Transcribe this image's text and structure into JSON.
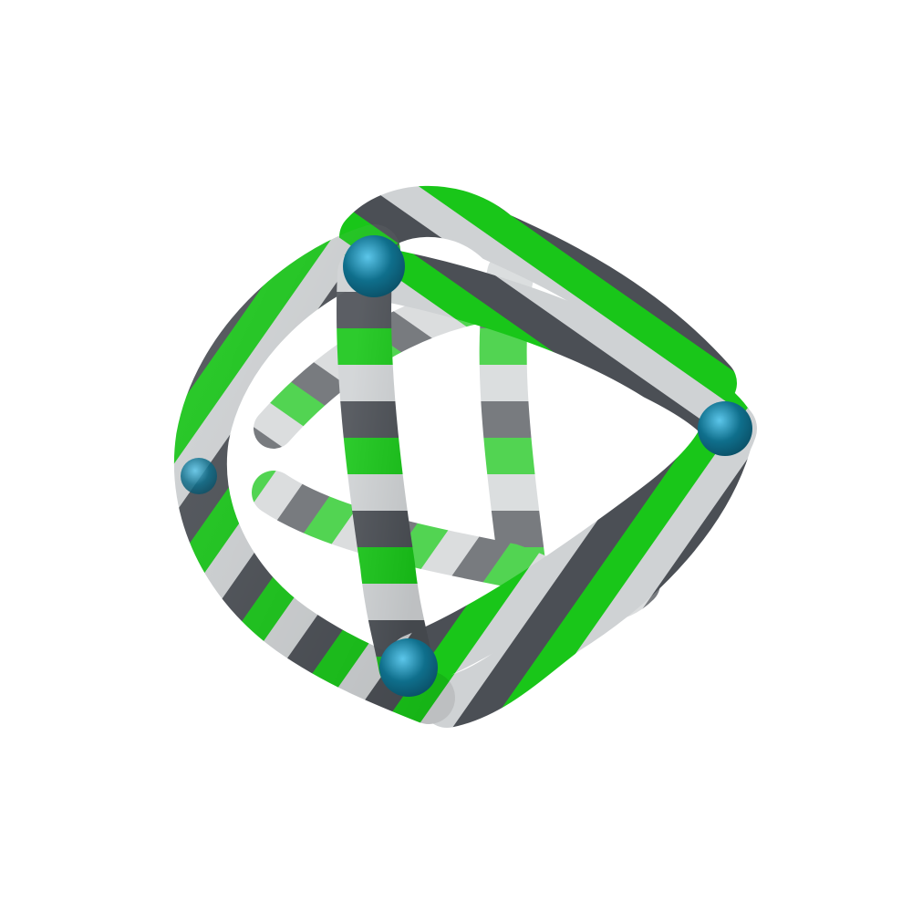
{
  "scene": {
    "subject": "cage-tube-render",
    "background": "#ffffff"
  },
  "palette": {
    "dark_gray": "#4b4f55",
    "light_gray": "#cfd2d4",
    "green": "#19c619",
    "teal_node": "#0f6f8c"
  }
}
